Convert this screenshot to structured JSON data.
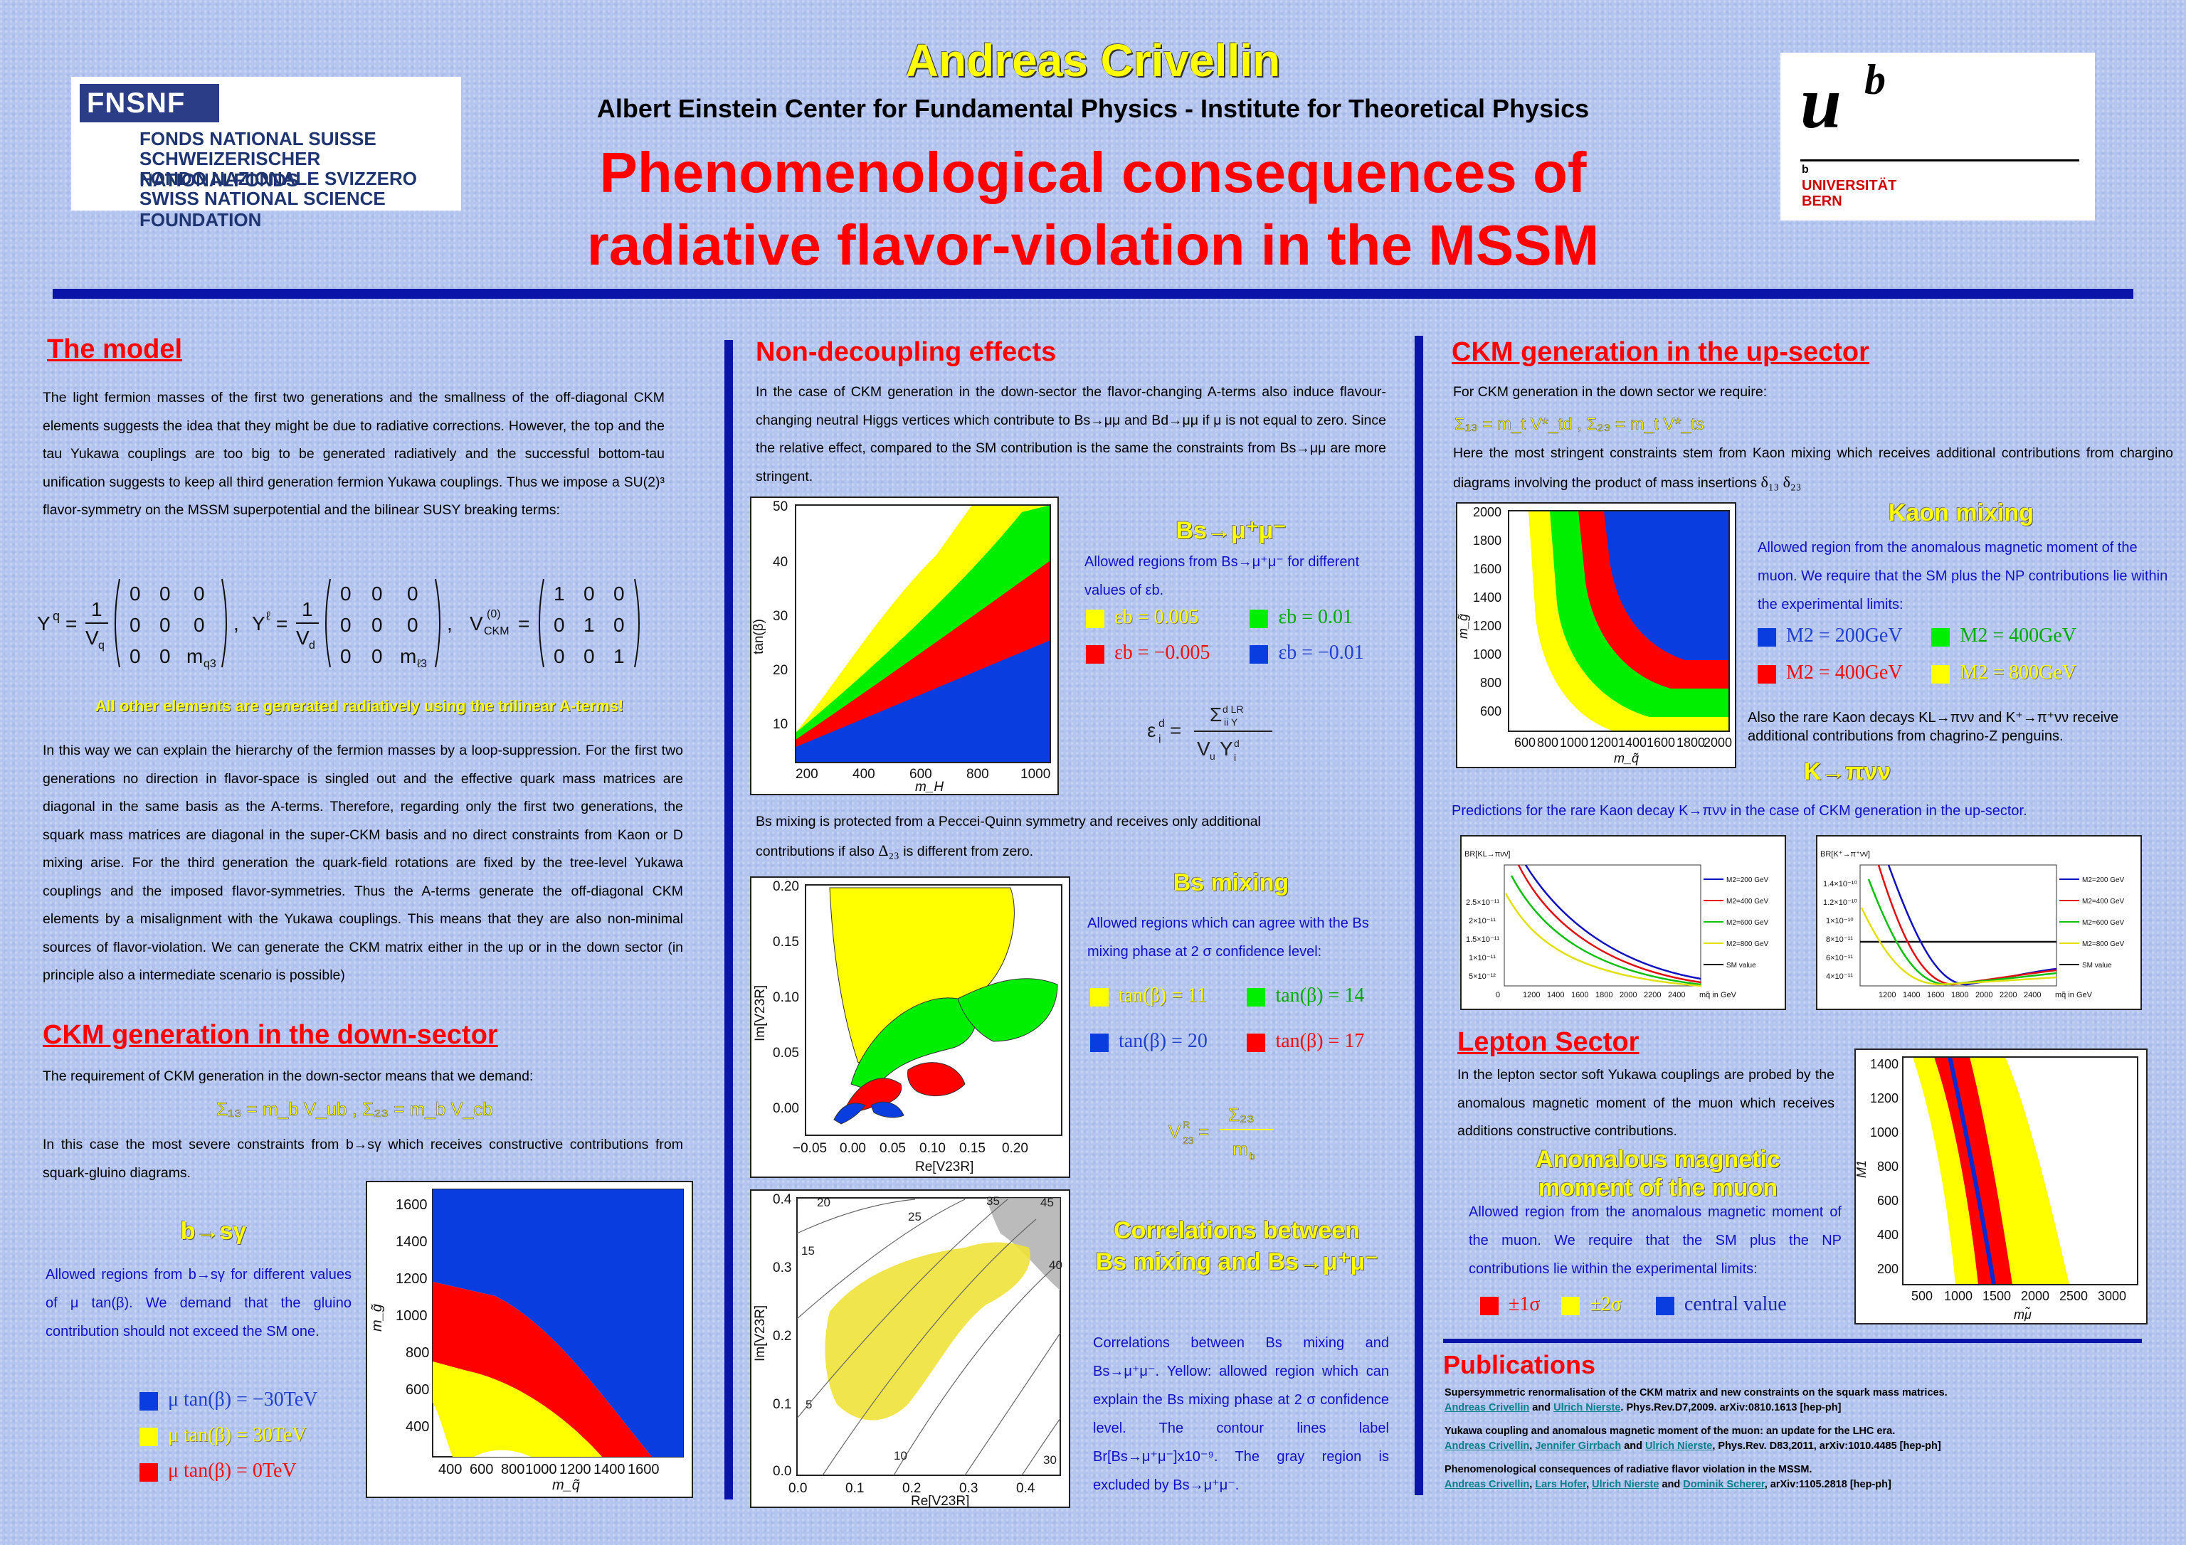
{
  "header": {
    "author": "Andreas Crivellin",
    "institute": "Albert Einstein Center for Fundamental Physics - Institute for Theoretical Physics",
    "title_line1": "Phenomenological consequences of",
    "title_line2": "radiative flavor-violation in the MSSM"
  },
  "logos": {
    "snf_abbr": "FNSNF",
    "snf_lines": [
      "FONDS NATIONAL SUISSE",
      "SCHWEIZERISCHER NATIONALFONDS",
      "FONDO NAZIONALE SVIZZERO",
      "SWISS NATIONAL SCIENCE FOUNDATION"
    ],
    "unibe_mark": "u",
    "unibe_sup": "b",
    "unibe_small": "b",
    "unibe_name1": "UNIVERSITÄT",
    "unibe_name2": "BERN"
  },
  "model": {
    "heading": "The model",
    "para1": "The light fermion masses of the first two generations and the smallness of the off-diagonal CKM elements suggests the idea that they might be due to radiative corrections. However, the top and the tau Yukawa couplings are too big to be generated radiatively and the successful bottom-tau unification suggests to keep all third generation fermion Yukawa couplings. Thus we impose a SU(2)³ flavor-symmetry on the MSSM superpotential and the bilinear SUSY breaking terms:",
    "highlight": "All other elements are generated radiatively using the trilinear A-terms!",
    "para2": "In this way we can explain the hierarchy of the fermion masses by a loop-suppression. For the first two generations no direction in flavor-space is singled out and the effective quark mass matrices are diagonal in the same basis as the A-terms. Therefore, regarding only the first two generations, the squark mass matrices are diagonal in the super-CKM basis and no direct constraints from Kaon or D mixing arise. For the third generation the quark-field rotations are fixed by the tree-level Yukawa couplings and the imposed flavor-symmetries. Thus the A-terms generate the off-diagonal CKM elements by a misalignment with the Yukawa couplings. This means that they are also non-minimal sources of flavor-violation. We can generate the CKM matrix either in the up or in the down sector (in principle also a intermediate scenario is possible)"
  },
  "ckm_down": {
    "heading": "CKM generation in the down-sector",
    "para1": "The requirement of CKM generation in the down-sector means that we demand:",
    "para2": "In this case the most severe constraints from b→sγ which receives constructive contributions from squark-gluino diagrams.",
    "bsg_title": "b→sγ",
    "bsg_text": "Allowed regions from b→sγ for different values of μ tan(β). We demand that the gluino contribution should not exceed the SM one.",
    "legend": [
      "μ tan(β) = −30TeV",
      "μ tan(β) = 30TeV",
      "μ tan(β) = 0TeV"
    ],
    "xlabel": "m_q̃",
    "ylabel": "m_g̃"
  },
  "nondec": {
    "heading": "Non-decoupling effects",
    "para1": "In the case of CKM generation in the down-sector the flavor-changing A-terms also induce flavour-changing neutral Higgs vertices which contribute to Bs→μμ and Bd→μμ if μ is not equal to zero. Since the relative effect, compared to the SM contribution is the same the constraints from Bs→μμ are more stringent.",
    "bsmm_title": "Bs→μ⁺μ⁻",
    "bsmm_text": "Allowed regions from Bs→μ⁺μ⁻ for different values of εb.",
    "legend": [
      "εb = 0.005",
      "εb = 0.01",
      "εb = −0.005",
      "εb = −0.01"
    ],
    "xlabel": "m_H",
    "ylabel": "tan(β)",
    "para2": "Bs mixing is protected from a Peccei-Quinn symmetry and receives only additional contributions if also Δ23 is different from zero.",
    "para2_a": "Bs mixing is protected from a Peccei-Quinn symmetry and receives only additional",
    "para2_b": "contributions if also",
    "para2_c": "is different from zero.",
    "bsmix_title": "Bs mixing",
    "bsmix_text": "Allowed regions which can agree with the Bs mixing phase at 2 σ confidence level:",
    "bsmix_legend": [
      "tan(β) = 11",
      "tan(β) = 14",
      "tan(β) = 20",
      "tan(β) = 17"
    ],
    "bsmix_xlabel": "Re[V23R]",
    "bsmix_ylabel": "Im[V23R]",
    "corr_title1": "Correlations between",
    "corr_title2": "Bs mixing and Bs→μ⁺μ⁻",
    "corr_text": "Correlations between Bs mixing and Bs→μ⁺μ⁻. Yellow: allowed region which can explain the Bs mixing phase at 2 σ confidence level. The contour lines label Br[Bs→μ⁺μ⁻]x10⁻⁹. The gray region is excluded by Bs→μ⁺μ⁻."
  },
  "ckm_up": {
    "heading": "CKM generation in the up-sector",
    "para1": "For CKM generation in the down sector we require:",
    "para2": "Here the most stringent constraints stem from Kaon mixing which receives additional contributions from chargino diagrams involving the product of mass insertions",
    "kaon_title": "Kaon mixing",
    "kaon_text": "Allowed region from the anomalous magnetic moment of the muon. We require that the SM plus the NP contributions lie within the experimental limits:",
    "legend": [
      "M2 = 200GeV",
      "M2 = 400GeV",
      "M2 = 400GeV",
      "M2 = 800GeV"
    ],
    "xlabel": "m_q̃",
    "ylabel": "m_g̃",
    "rare_text": "Also the rare Kaon decays KL→πνν and K⁺→π⁺νν receive additional contributions from chagrino-Z penguins.",
    "kpnn_title": "K→πνν",
    "kpnn_text": "Predictions for the rare Kaon decay K→πνν in the case of CKM generation in the up-sector.",
    "br_legend": [
      "M2=200 GeV",
      "M2=400 GeV",
      "M2=600 GeV",
      "M2=800 GeV",
      "SM value"
    ],
    "br_xlabel": "mq̃ in GeV",
    "br_ylabel1": "BR[KL→πνν̄]",
    "br_ylabel2": "BR[K⁺→π⁺νν̄]"
  },
  "lepton": {
    "heading": "Lepton Sector",
    "para": "In the lepton sector soft Yukawa couplings are probed by the anomalous magnetic moment of the muon which receives additions constructive contributions.",
    "amm_title1": "Anomalous magnetic",
    "amm_title2": "moment of the muon",
    "amm_text": "Allowed region from the anomalous magnetic moment of the muon. We require that the SM plus the NP contributions lie within the experimental limits:",
    "legend": [
      "±1σ",
      "±2σ",
      "central value"
    ],
    "xlabel": "mμ̃",
    "ylabel": "M1"
  },
  "pubs": {
    "heading": "Publications",
    "items": [
      {
        "title": "Supersymmetric renormalisation of the CKM matrix and new constraints on the squark mass matrices.",
        "authors": [
          "Andreas Crivellin",
          "Ulrich Nierste"
        ],
        "ref": ". Phys.Rev.D7,2009. arXiv:0810.1613 [hep-ph]"
      },
      {
        "title": "Yukawa coupling and anomalous magnetic moment of the muon: an update for the LHC era.",
        "authors": [
          "Andreas Crivellin",
          "Jennifer Girrbach",
          "Ulrich Nierste"
        ],
        "ref": ", Phys.Rev. D83,2011, arXiv:1010.4485 [hep-ph]"
      },
      {
        "title": "Phenomenological consequences of radiative flavor violation in the MSSM.",
        "authors": [
          "Andreas Crivellin",
          "Lars Hofer",
          "Ulrich Nierste",
          "Dominik Scherer"
        ],
        "ref": ", arXiv:1105.2818 [hep-ph]"
      }
    ]
  },
  "colors": {
    "yellow": "#ffff00",
    "green": "#00ee00",
    "red": "#ff0000",
    "blue": "#0a3de0",
    "navy": "#0a14a8"
  }
}
